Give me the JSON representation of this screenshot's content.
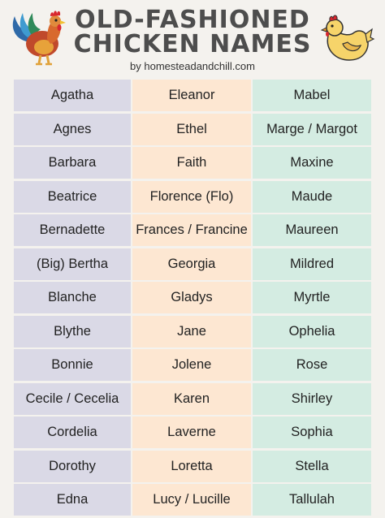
{
  "header": {
    "title_line1": "OLD-FASHIONED",
    "title_line2": "CHICKEN NAMES",
    "byline": "by homesteadandchill.com"
  },
  "colors": {
    "col1_bg": "#dad9e6",
    "col2_bg": "#fde7d2",
    "col3_bg": "#d4ece2",
    "title": "#4d4d4d"
  },
  "names": {
    "col1": [
      "Agatha",
      "Agnes",
      "Barbara",
      "Beatrice",
      "Bernadette",
      "(Big) Bertha",
      "Blanche",
      "Blythe",
      "Bonnie",
      "Cecile / Cecelia",
      "Cordelia",
      "Dorothy",
      "Edna"
    ],
    "col2": [
      "Eleanor",
      "Ethel",
      "Faith",
      "Florence (Flo)",
      "Frances / Francine",
      "Georgia",
      "Gladys",
      "Jane",
      "Jolene",
      "Karen",
      "Laverne",
      "Loretta",
      "Lucy / Lucille"
    ],
    "col3": [
      "Mabel",
      "Marge / Margot",
      "Maxine",
      "Maude",
      "Maureen",
      "Mildred",
      "Myrtle",
      "Ophelia",
      "Rose",
      "Shirley",
      "Sophia",
      "Stella",
      "Tallulah"
    ]
  }
}
